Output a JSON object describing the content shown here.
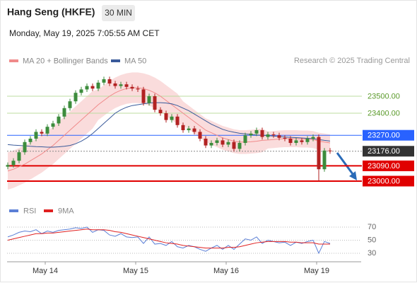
{
  "chart_data": [
    {
      "type": "candlestick",
      "title": "Hang Seng (HKFE)",
      "timeframe": "30 MIN",
      "timestamp": "Monday, May 19, 2025 7:05:55 AM CET",
      "source": "Research © 2025 Trading Central",
      "up_color": "#3c8c3c",
      "down_color": "#b22222",
      "open": [
        23085,
        23095,
        23120,
        23170,
        23230,
        23250,
        23290,
        23280,
        23320,
        23340,
        23380,
        23430,
        23470,
        23520,
        23540,
        23560,
        23545,
        23580,
        23600,
        23575,
        23560,
        23570,
        23555,
        23545,
        23540,
        23460,
        23500,
        23420,
        23400,
        23360,
        23380,
        23330,
        23300,
        23310,
        23290,
        23250,
        23210,
        23225,
        23240,
        23215,
        23230,
        23190,
        23225,
        23270,
        23280,
        23300,
        23260,
        23275,
        23270,
        23255,
        23250,
        23225,
        23240,
        23230,
        23250,
        23260,
        23070,
        23180
      ],
      "high": [
        23110,
        23135,
        23185,
        23245,
        23265,
        23305,
        23305,
        23335,
        23355,
        23395,
        23445,
        23485,
        23535,
        23555,
        23575,
        23575,
        23595,
        23615,
        23615,
        23590,
        23585,
        23585,
        23570,
        23560,
        23555,
        23515,
        23515,
        23435,
        23415,
        23395,
        23395,
        23345,
        23325,
        23325,
        23305,
        23265,
        23240,
        23255,
        23255,
        23245,
        23245,
        23240,
        23285,
        23295,
        23315,
        23315,
        23290,
        23290,
        23285,
        23270,
        23265,
        23255,
        23255,
        23265,
        23275,
        23275,
        23195,
        23195
      ],
      "low": [
        23070,
        23080,
        23105,
        23155,
        23215,
        23235,
        23265,
        23265,
        23305,
        23325,
        23365,
        23415,
        23455,
        23505,
        23525,
        23530,
        23530,
        23565,
        23560,
        23545,
        23545,
        23540,
        23530,
        23525,
        23445,
        23445,
        23405,
        23385,
        23345,
        23345,
        23315,
        23285,
        23285,
        23275,
        23235,
        23195,
        23195,
        23210,
        23200,
        23200,
        23175,
        23175,
        23210,
        23255,
        23265,
        23245,
        23245,
        23255,
        23240,
        23235,
        23210,
        23210,
        23215,
        23215,
        23235,
        23000,
        23055,
        23161
      ],
      "close": [
        23095,
        23120,
        23170,
        23230,
        23250,
        23290,
        23280,
        23320,
        23340,
        23380,
        23430,
        23470,
        23520,
        23540,
        23560,
        23545,
        23580,
        23600,
        23575,
        23560,
        23570,
        23555,
        23545,
        23540,
        23460,
        23500,
        23420,
        23400,
        23360,
        23380,
        23330,
        23300,
        23310,
        23290,
        23250,
        23210,
        23225,
        23240,
        23215,
        23230,
        23190,
        23225,
        23270,
        23280,
        23300,
        23260,
        23275,
        23270,
        23255,
        23250,
        23225,
        23240,
        23230,
        23250,
        23260,
        23070,
        23180,
        23176
      ],
      "series": [
        {
          "name": "MA 20 + Bollinger Bands",
          "color": "#f08a8a",
          "values": [
            23060,
            23070,
            23085,
            23100,
            23120,
            23140,
            23160,
            23185,
            23210,
            23240,
            23270,
            23300,
            23330,
            23360,
            23390,
            23420,
            23450,
            23475,
            23500,
            23520,
            23535,
            23545,
            23550,
            23550,
            23545,
            23535,
            23520,
            23500,
            23475,
            23450,
            23425,
            23400,
            23375,
            23350,
            23325,
            23300,
            23285,
            23270,
            23255,
            23245,
            23235,
            23230,
            23230,
            23232,
            23235,
            23240,
            23242,
            23245,
            23248,
            23250,
            23250,
            23250,
            23248,
            23248,
            23245,
            23235,
            23230,
            23225
          ],
          "upper": [
            23170,
            23180,
            23195,
            23210,
            23230,
            23250,
            23270,
            23295,
            23320,
            23350,
            23380,
            23410,
            23440,
            23470,
            23500,
            23530,
            23540,
            23565,
            23590,
            23610,
            23625,
            23635,
            23640,
            23640,
            23635,
            23625,
            23610,
            23590,
            23565,
            23540,
            23515,
            23470,
            23445,
            23420,
            23395,
            23370,
            23355,
            23340,
            23325,
            23315,
            23305,
            23300,
            23300,
            23302,
            23305,
            23310,
            23292,
            23295,
            23298,
            23300,
            23300,
            23300,
            23298,
            23298,
            23295,
            23285,
            23280,
            23275
          ],
          "lower": [
            22950,
            22960,
            22975,
            22990,
            23010,
            23030,
            23050,
            23075,
            23100,
            23130,
            23160,
            23190,
            23220,
            23250,
            23280,
            23310,
            23360,
            23385,
            23410,
            23430,
            23445,
            23455,
            23460,
            23460,
            23455,
            23445,
            23430,
            23410,
            23385,
            23360,
            23335,
            23330,
            23305,
            23280,
            23255,
            23230,
            23215,
            23200,
            23185,
            23175,
            23165,
            23160,
            23160,
            23162,
            23165,
            23170,
            23192,
            23195,
            23198,
            23200,
            23200,
            23200,
            23198,
            23198,
            23195,
            23185,
            23180,
            23175
          ]
        },
        {
          "name": "MA 50",
          "color": "#3a5a9a",
          "values": [
            23215,
            23212,
            23210,
            23208,
            23205,
            23203,
            23202,
            23200,
            23200,
            23202,
            23205,
            23210,
            23220,
            23235,
            23255,
            23280,
            23310,
            23340,
            23370,
            23400,
            23420,
            23435,
            23445,
            23450,
            23455,
            23460,
            23462,
            23462,
            23460,
            23455,
            23445,
            23430,
            23415,
            23395,
            23375,
            23355,
            23335,
            23320,
            23305,
            23295,
            23288,
            23282,
            23278,
            23275,
            23272,
            23270,
            23268,
            23265,
            23263,
            23260,
            23258,
            23256,
            23254,
            23252,
            23250,
            23245,
            23240,
            23236
          ]
        }
      ],
      "levels": [
        {
          "value": 23500,
          "label": "23500.00",
          "color": "#5a9a2a",
          "line_color": "#bcdca0",
          "boxed": false,
          "line_width": 1
        },
        {
          "value": 23400,
          "label": "23400.00",
          "color": "#5a9a2a",
          "line_color": "#bcdca0",
          "boxed": false,
          "line_width": 1
        },
        {
          "value": 23270,
          "label": "23270.00",
          "color": "#2962ff",
          "line_color": "#2962ff",
          "boxed": true,
          "line_width": 1
        },
        {
          "value": 23176,
          "label": "23176.00",
          "color": "#333333",
          "line_color": "#888888",
          "boxed": true,
          "line_width": 1,
          "dashed": true
        },
        {
          "value": 23090,
          "label": "23090.00",
          "color": "#e00000",
          "line_color": "#e00000",
          "boxed": true,
          "line_width": 2
        },
        {
          "value": 23000,
          "label": "23000.00",
          "color": "#e00000",
          "line_color": "#e00000",
          "boxed": true,
          "line_width": 2
        }
      ],
      "ylim": [
        22940,
        23680
      ]
    },
    {
      "type": "line",
      "categories": [
        null,
        null,
        null,
        null,
        null,
        null,
        null,
        "May 14",
        null,
        null,
        null,
        null,
        null,
        null,
        null,
        null,
        null,
        null,
        null,
        null,
        null,
        null,
        null,
        "May 15",
        null,
        null,
        null,
        null,
        null,
        null,
        null,
        null,
        null,
        null,
        null,
        null,
        null,
        null,
        null,
        "May 16",
        null,
        null,
        null,
        null,
        null,
        null,
        null,
        null,
        null,
        null,
        null,
        null,
        null,
        null,
        null,
        "May 19",
        null,
        null
      ],
      "series": [
        {
          "name": "RSI",
          "color": "#5b7fd6",
          "values": [
            55,
            58,
            62,
            64,
            63,
            66,
            60,
            64,
            62,
            65,
            66,
            67,
            69,
            68,
            70,
            62,
            66,
            65,
            58,
            56,
            60,
            55,
            54,
            55,
            45,
            55,
            44,
            45,
            42,
            48,
            40,
            38,
            42,
            40,
            36,
            33,
            38,
            42,
            36,
            42,
            36,
            44,
            52,
            50,
            55,
            45,
            50,
            48,
            46,
            47,
            42,
            47,
            45,
            48,
            50,
            30,
            48,
            45
          ]
        },
        {
          "name": "9MA",
          "color": "#e02020",
          "values": [
            50,
            52,
            54,
            56,
            58,
            60,
            60,
            61,
            61,
            62,
            63,
            64,
            65,
            66,
            67,
            66,
            66,
            66,
            65,
            63,
            62,
            60,
            58,
            56,
            54,
            52,
            50,
            48,
            46,
            45,
            44,
            42,
            41,
            40,
            39,
            38,
            38,
            38,
            38,
            39,
            39,
            40,
            42,
            44,
            46,
            47,
            48,
            48,
            48,
            48,
            47,
            47,
            46,
            46,
            46,
            44,
            44,
            44
          ]
        }
      ],
      "ylim": [
        17,
        82
      ],
      "yticks": [
        30,
        50,
        70
      ],
      "grid": true
    }
  ]
}
